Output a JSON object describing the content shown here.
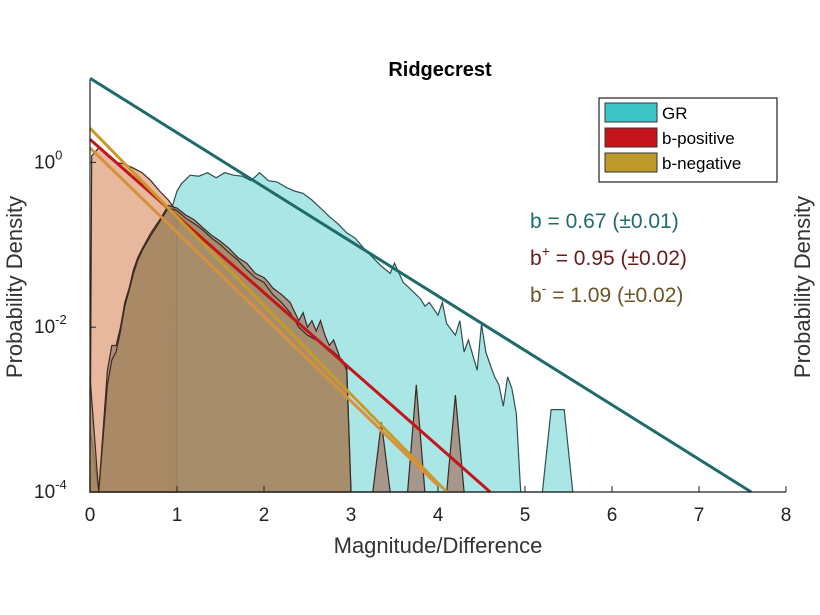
{
  "chart_data": {
    "type": "area",
    "title": "Ridgecrest",
    "xlabel": "Magnitude/Difference",
    "ylabel": "Probability Density",
    "right_ylabel": "Probability Density",
    "xlim": [
      0,
      8
    ],
    "ylim": [
      0.0001,
      10
    ],
    "yscale": "log",
    "x_ticks": [
      "0",
      "1",
      "2",
      "3",
      "4",
      "5",
      "6",
      "7",
      "8"
    ],
    "y_ticks": [
      {
        "base": "10",
        "exp": "0"
      },
      {
        "base": "10",
        "exp": "-2"
      },
      {
        "base": "10",
        "exp": "-4"
      }
    ],
    "grid": false,
    "legend_position": "top-right",
    "legend": [
      {
        "label": "GR",
        "color": "#3ec6c6"
      },
      {
        "label": "b-positive",
        "color": "#c4151c"
      },
      {
        "label": "b-negative",
        "color": "#bf9a2a"
      }
    ],
    "annotations": [
      {
        "pre": "b",
        "sup": "",
        "post": " = 0.67 (±0.01)",
        "color": "#1e6b6b"
      },
      {
        "pre": "b",
        "sup": "+",
        "post": " = 0.95 (±0.02)",
        "color": "#6b1a1a"
      },
      {
        "pre": "b",
        "sup": "-",
        "post": " = 1.09 (±0.02)",
        "color": "#6b5524"
      }
    ],
    "series": [
      {
        "name": "GR",
        "kind": "histogram",
        "fill": "#8fdede",
        "stroke": "#2f4f4f",
        "points": [
          [
            0.9,
            0.0001
          ],
          [
            0.95,
            0.3
          ],
          [
            1.0,
            0.45
          ],
          [
            1.05,
            0.55
          ],
          [
            1.15,
            0.7
          ],
          [
            1.25,
            0.68
          ],
          [
            1.35,
            0.75
          ],
          [
            1.45,
            0.65
          ],
          [
            1.55,
            0.75
          ],
          [
            1.65,
            0.7
          ],
          [
            1.75,
            0.68
          ],
          [
            1.85,
            0.6
          ],
          [
            1.95,
            0.75
          ],
          [
            2.05,
            0.6
          ],
          [
            2.15,
            0.58
          ],
          [
            2.25,
            0.5
          ],
          [
            2.35,
            0.45
          ],
          [
            2.45,
            0.42
          ],
          [
            2.55,
            0.35
          ],
          [
            2.65,
            0.28
          ],
          [
            2.75,
            0.22
          ],
          [
            2.85,
            0.18
          ],
          [
            2.95,
            0.14
          ],
          [
            3.05,
            0.12
          ],
          [
            3.15,
            0.09
          ],
          [
            3.25,
            0.07
          ],
          [
            3.35,
            0.055
          ],
          [
            3.45,
            0.045
          ],
          [
            3.5,
            0.06
          ],
          [
            3.6,
            0.035
          ],
          [
            3.7,
            0.028
          ],
          [
            3.8,
            0.022
          ],
          [
            3.85,
            0.018
          ],
          [
            3.9,
            0.02
          ],
          [
            4.0,
            0.014
          ],
          [
            4.05,
            0.02
          ],
          [
            4.1,
            0.011
          ],
          [
            4.2,
            0.008
          ],
          [
            4.25,
            0.012
          ],
          [
            4.3,
            0.005
          ],
          [
            4.35,
            0.007
          ],
          [
            4.45,
            0.003
          ],
          [
            4.5,
            0.011
          ],
          [
            4.55,
            0.005
          ],
          [
            4.6,
            0.0035
          ],
          [
            4.65,
            0.0025
          ],
          [
            4.7,
            0.002
          ],
          [
            4.75,
            0.0011
          ],
          [
            4.8,
            0.0025
          ],
          [
            4.85,
            0.0018
          ],
          [
            4.9,
            0.0009
          ],
          [
            4.95,
            0.0001
          ],
          [
            5.2,
            0.0001
          ],
          [
            5.3,
            0.001
          ],
          [
            5.45,
            0.001
          ],
          [
            5.55,
            0.0001
          ]
        ]
      },
      {
        "name": "b-negative",
        "kind": "histogram",
        "fill": "#e0a07e",
        "stroke": "#3a2a20",
        "points": [
          [
            0.0,
            0.0001
          ],
          [
            0.02,
            1.2
          ],
          [
            0.1,
            1.5
          ],
          [
            0.2,
            1.2
          ],
          [
            0.3,
            1.0
          ],
          [
            0.4,
            0.95
          ],
          [
            0.5,
            0.85
          ],
          [
            0.6,
            0.75
          ],
          [
            0.7,
            0.6
          ],
          [
            0.8,
            0.45
          ],
          [
            0.9,
            0.35
          ],
          [
            1.0,
            0.25
          ]
        ]
      },
      {
        "name": "b-positive",
        "kind": "histogram",
        "fill": "#a57b6e",
        "stroke": "#3a2a20",
        "points": [
          [
            0.0,
            0.0006
          ],
          [
            0.1,
            0.0001
          ],
          [
            0.2,
            0.003
          ],
          [
            0.25,
            0.006
          ],
          [
            0.3,
            0.006
          ],
          [
            0.35,
            0.01
          ],
          [
            0.4,
            0.02
          ],
          [
            0.45,
            0.03
          ],
          [
            0.5,
            0.05
          ],
          [
            0.55,
            0.07
          ],
          [
            0.6,
            0.09
          ],
          [
            0.7,
            0.14
          ],
          [
            0.8,
            0.2
          ],
          [
            0.9,
            0.3
          ],
          [
            1.0,
            0.28
          ],
          [
            1.1,
            0.23
          ],
          [
            1.2,
            0.2
          ],
          [
            1.3,
            0.16
          ],
          [
            1.4,
            0.13
          ],
          [
            1.5,
            0.11
          ],
          [
            1.6,
            0.09
          ],
          [
            1.7,
            0.07
          ],
          [
            1.8,
            0.06
          ],
          [
            1.9,
            0.045
          ],
          [
            2.0,
            0.04
          ],
          [
            2.05,
            0.035
          ],
          [
            2.1,
            0.03
          ],
          [
            2.2,
            0.025
          ],
          [
            2.3,
            0.02
          ],
          [
            2.4,
            0.012
          ],
          [
            2.45,
            0.015
          ],
          [
            2.5,
            0.01
          ],
          [
            2.55,
            0.012
          ],
          [
            2.6,
            0.009
          ],
          [
            2.65,
            0.012
          ],
          [
            2.7,
            0.008
          ],
          [
            2.75,
            0.006
          ],
          [
            2.8,
            0.007
          ],
          [
            2.85,
            0.005
          ],
          [
            2.9,
            0.0035
          ],
          [
            2.95,
            0.0035
          ],
          [
            3.0,
            0.0001
          ],
          [
            3.25,
            0.0001
          ],
          [
            3.35,
            0.0007
          ],
          [
            3.45,
            0.0001
          ],
          [
            3.65,
            0.0001
          ],
          [
            3.75,
            0.002
          ],
          [
            3.85,
            0.0001
          ],
          [
            4.1,
            0.0001
          ],
          [
            4.2,
            0.0015
          ],
          [
            4.3,
            0.0001
          ]
        ]
      },
      {
        "name": "b-negative-overlay",
        "kind": "histogram",
        "fill": "#a68a60",
        "stroke": "#3a2a20",
        "points": [
          [
            0.0,
            0.0025
          ],
          [
            0.1,
            0.0001
          ],
          [
            0.2,
            0.002
          ],
          [
            0.25,
            0.004
          ],
          [
            0.3,
            0.005
          ],
          [
            0.35,
            0.009
          ],
          [
            0.4,
            0.018
          ],
          [
            0.45,
            0.028
          ],
          [
            0.5,
            0.045
          ],
          [
            0.55,
            0.065
          ],
          [
            0.6,
            0.085
          ],
          [
            0.7,
            0.13
          ],
          [
            0.8,
            0.19
          ],
          [
            0.9,
            0.28
          ],
          [
            1.0,
            0.26
          ],
          [
            1.1,
            0.21
          ],
          [
            1.2,
            0.18
          ],
          [
            1.3,
            0.15
          ],
          [
            1.4,
            0.12
          ],
          [
            1.5,
            0.1
          ],
          [
            1.6,
            0.08
          ],
          [
            1.7,
            0.065
          ],
          [
            1.8,
            0.05
          ],
          [
            1.9,
            0.04
          ],
          [
            2.0,
            0.035
          ],
          [
            2.1,
            0.025
          ],
          [
            2.2,
            0.02
          ],
          [
            2.3,
            0.015
          ],
          [
            2.4,
            0.01
          ],
          [
            2.5,
            0.008
          ],
          [
            2.6,
            0.007
          ],
          [
            2.7,
            0.006
          ],
          [
            2.8,
            0.005
          ],
          [
            2.9,
            0.004
          ],
          [
            2.95,
            0.003
          ],
          [
            3.0,
            0.0001
          ]
        ]
      }
    ],
    "fit_lines": [
      {
        "name": "GR fit",
        "color": "#1e6b6b",
        "points": [
          [
            0,
            10.5
          ],
          [
            7.6,
            0.0001
          ]
        ]
      },
      {
        "name": "b-positive fit",
        "color": "#c4151c",
        "points": [
          [
            0,
            1.9
          ],
          [
            4.6,
            0.0001
          ]
        ]
      },
      {
        "name": "b-negative fit",
        "color": "#c79a2a",
        "points": [
          [
            0,
            2.6
          ],
          [
            4.1,
            0.0001
          ]
        ]
      },
      {
        "name": "b-negative fit 2",
        "color": "#d88f3e",
        "points": [
          [
            0,
            1.5
          ],
          [
            4.0,
            0.00012
          ]
        ]
      }
    ]
  }
}
